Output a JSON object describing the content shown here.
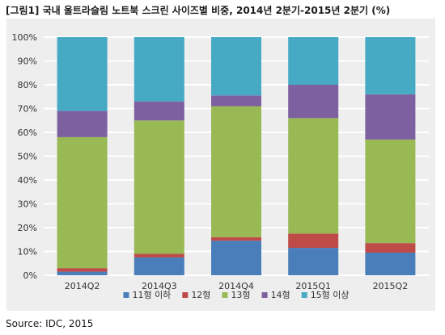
{
  "title": "[그림1] 국내 울트라슬림 노트북 스크린 사이즈별 비중, 2014년 2분기-2015년 2분기 (%)",
  "source": "Source: IDC, 2015",
  "chart_data": {
    "type": "bar",
    "stacked": true,
    "percent": true,
    "categories": [
      "2014Q2",
      "2014Q3",
      "2014Q4",
      "2015Q1",
      "2015Q2"
    ],
    "series": [
      {
        "name": "11형 이하",
        "color": "#4a7ebb",
        "values": [
          1.5,
          7.5,
          14.5,
          11.5,
          9.5
        ]
      },
      {
        "name": "12형",
        "color": "#be4b48",
        "values": [
          1.5,
          1.5,
          1.5,
          6.0,
          4.0
        ]
      },
      {
        "name": "13형",
        "color": "#98b954",
        "values": [
          55.0,
          56.0,
          55.0,
          48.5,
          43.5
        ]
      },
      {
        "name": "14형",
        "color": "#7d60a0",
        "values": [
          11.0,
          8.0,
          4.5,
          14.0,
          19.0
        ]
      },
      {
        "name": "15형 이상",
        "color": "#46aac5",
        "values": [
          31.0,
          27.0,
          24.5,
          20.0,
          24.0
        ]
      }
    ],
    "ylim": [
      0,
      100
    ],
    "yticks": [
      "0%",
      "10%",
      "20%",
      "30%",
      "40%",
      "50%",
      "60%",
      "70%",
      "80%",
      "90%",
      "100%"
    ],
    "grid": true,
    "legend_position": "bottom",
    "xlabel": "",
    "ylabel": ""
  }
}
